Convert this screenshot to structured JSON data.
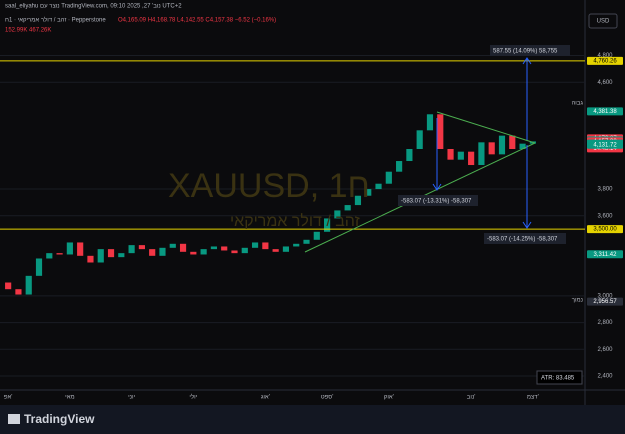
{
  "chart_data": {
    "type": "candlestick",
    "author_line": "saal_eliyahu נוצר עם TradingView.com, נוב' 27, 2025 09:10 UTC+2",
    "symbol_line": "זהב / דולר אמריקאי · 1ח · Pepperstone",
    "ohlc_line": "O4,165.09 H4,168.78 L4,142.55 C4,157.38 −6.52 (−0.16%)",
    "volume_line": "152.99K 467.26K",
    "currency": "USD",
    "watermark": "XAUUSD, 1ח",
    "watermark_subtitle": "זהב / דולר אמריקאי",
    "high_label": "גבוה",
    "low_label": "נמוך",
    "atr_label": "ATR: 83.485",
    "measure_up": "587.55 (14.09%) 58,755",
    "measure_down_1": "-583.07 (-13.31%) -58,307",
    "measure_down_2": "-583.07 (-14.25%) -58,307",
    "footer": "TradingView",
    "categories": [
      "אפ'",
      null,
      null,
      null,
      null,
      null,
      "מאי",
      null,
      null,
      null,
      null,
      null,
      "יוני",
      null,
      null,
      null,
      null,
      null,
      "יולי",
      null,
      null,
      null,
      null,
      null,
      null,
      "אוג'",
      null,
      null,
      null,
      null,
      null,
      "ספט'",
      null,
      null,
      null,
      null,
      null,
      "אוק'",
      null,
      null,
      null,
      null,
      null,
      null,
      null,
      "נוב'",
      null,
      null,
      null,
      null,
      null,
      "דצמ'"
    ],
    "open": [
      3100,
      3050,
      3010,
      3150,
      3280,
      3320,
      3310,
      3400,
      3300,
      3250,
      3350,
      3290,
      3320,
      3380,
      3350,
      3300,
      3360,
      3390,
      3330,
      3310,
      3350,
      3370,
      3340,
      3320,
      3360,
      3400,
      3350,
      3330,
      3370,
      3390,
      3420,
      3480,
      3580,
      3640,
      3680,
      3750,
      3800,
      3840,
      3930,
      4010,
      4100,
      4240,
      4360,
      4100,
      4020,
      4080,
      3980,
      4150,
      4060,
      4200,
      4100,
      4140
    ],
    "close": [
      3050,
      3010,
      3150,
      3280,
      3320,
      3310,
      3400,
      3300,
      3250,
      3350,
      3290,
      3320,
      3380,
      3350,
      3300,
      3360,
      3390,
      3330,
      3310,
      3350,
      3370,
      3340,
      3320,
      3360,
      3400,
      3350,
      3330,
      3370,
      3390,
      3420,
      3480,
      3580,
      3640,
      3680,
      3750,
      3800,
      3840,
      3930,
      4010,
      4100,
      4240,
      4360,
      4100,
      4020,
      4080,
      3980,
      4150,
      4060,
      4200,
      4100,
      4140,
      4157
    ],
    "up_color": "#089981",
    "down_color": "#f23645",
    "ylim": [
      2295,
      5216
    ],
    "yticks": [
      {
        "value": 2400,
        "label": "2,400"
      },
      {
        "value": 2600,
        "label": "2,600"
      },
      {
        "value": 2800,
        "label": "2,800"
      },
      {
        "value": 3000,
        "label": "3,000"
      },
      {
        "value": 3600,
        "label": "3,600"
      },
      {
        "value": 3800,
        "label": "3,800"
      },
      {
        "value": 4600,
        "label": "4,600"
      },
      {
        "value": 4800,
        "label": "4,800"
      }
    ],
    "grid": true,
    "price_tags": [
      {
        "value": 4760.26,
        "label": "4,760.26",
        "color": "#e5d300",
        "line": true
      },
      {
        "value": 4381.38,
        "label": "4,381.38",
        "color": "#089981"
      },
      {
        "value": 4179.87,
        "label": "4,179.87",
        "color": "#f23645"
      },
      {
        "value": 4164.63,
        "label": "4,164.63",
        "color": "#089981"
      },
      {
        "value": 4157.38,
        "label": "4,157.38",
        "color": "#f23645",
        "countdown": "14:48:14"
      },
      {
        "value": 4140.42,
        "label": "4,140.42",
        "color": "#089981"
      },
      {
        "value": 4138.66,
        "label": "4,138.66",
        "color": "#089981"
      },
      {
        "value": 4131.72,
        "label": "4,131.72",
        "color": "#089981"
      },
      {
        "value": 3500,
        "label": "3,500.00",
        "color": "#e5d300",
        "line": true
      },
      {
        "value": 3311.42,
        "label": "3,311.42",
        "color": "#089981"
      },
      {
        "value": 2956.57,
        "label": "2,956.57",
        "color": "#2a2e39"
      }
    ]
  }
}
